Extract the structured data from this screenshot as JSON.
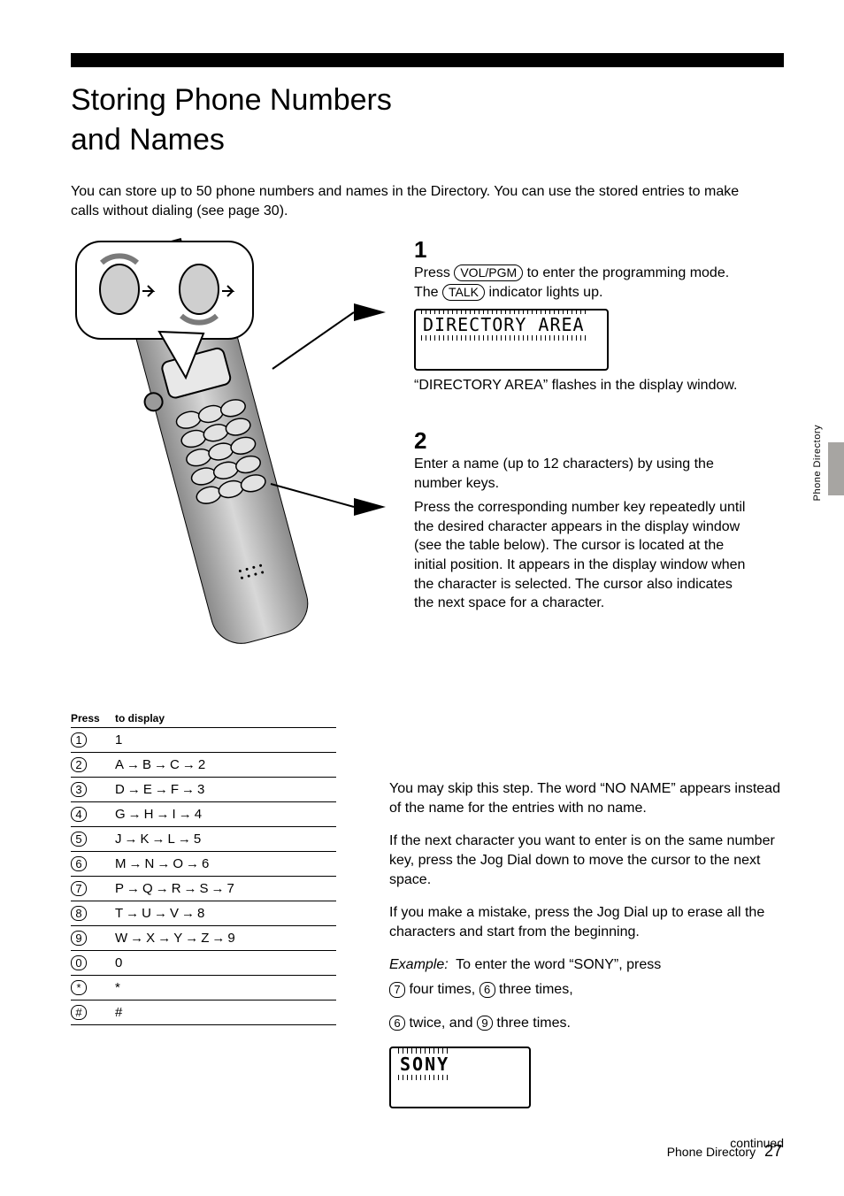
{
  "title_line1": "Storing Phone Numbers",
  "title_line2": "and Names",
  "intro": "You can store up to 50 phone numbers and names in the Directory. You can use the stored entries to make calls without dialing (see page 30).",
  "steps": {
    "s1": {
      "num": "1",
      "text_a": "Press ",
      "pill": "VOL/PGM",
      "text_b": " to enter the programming mode. The ",
      "pill2": "TALK",
      "text_c": " indicator lights up.",
      "sub": "“DIRECTORY AREA” flashes in the display window.",
      "lcd": "DIRECTORY AREA"
    },
    "s2": {
      "num": "2",
      "text": "Enter a name (up to 12 characters) by using the number keys.",
      "sub": "Press the corresponding number key repeatedly until the desired character appears in the display window (see the table below). The cursor is located at the initial position. It appears in the display window when the character is selected. The cursor also indicates the next space for a character."
    }
  },
  "char_table": {
    "head_press": "Press",
    "head_display": "to display",
    "rows": [
      {
        "key": "1",
        "seq": [
          "1"
        ]
      },
      {
        "key": "2",
        "seq": [
          "A",
          "B",
          "C",
          "2"
        ]
      },
      {
        "key": "3",
        "seq": [
          "D",
          "E",
          "F",
          "3"
        ]
      },
      {
        "key": "4",
        "seq": [
          "G",
          "H",
          "I",
          "4"
        ]
      },
      {
        "key": "5",
        "seq": [
          "J",
          "K",
          "L",
          "5"
        ]
      },
      {
        "key": "6",
        "seq": [
          "M",
          "N",
          "O",
          "6"
        ]
      },
      {
        "key": "7",
        "seq": [
          "P",
          "Q",
          "R",
          "S",
          "7"
        ]
      },
      {
        "key": "8",
        "seq": [
          "T",
          "U",
          "V",
          "8"
        ]
      },
      {
        "key": "9",
        "seq": [
          "W",
          "X",
          "Y",
          "Z",
          "9"
        ]
      },
      {
        "key": "0",
        "seq": [
          "0"
        ]
      },
      {
        "key": "*",
        "seq": [
          "*"
        ]
      },
      {
        "key": "#",
        "seq": [
          "#"
        ]
      }
    ]
  },
  "notes": {
    "spaces": "You may skip this step. The word “NO NAME” appears instead of the name for the entries with no name.",
    "same_key_a": "If the next character you want to enter is on the same number key, press the Jog Dial down to move the cursor to the next space.",
    "same_key_b": "If you make a mistake, press the Jog Dial up to erase all the characters and start from the beginning.",
    "example_label": "Example:",
    "example_text": "To enter the word “SONY”, press",
    "ex1_prefix": "",
    "ex1_key1": "7",
    "ex1_mid": " four times, ",
    "ex1_key2": "6",
    "ex1_suffix": " three times,",
    "ex2_key1": "6",
    "ex2_mid": " twice, and ",
    "ex2_key2": "9",
    "ex2_suffix": " three times.",
    "lcd2_text": "SONY",
    "continued": "continued"
  },
  "side_label": "Phone Directory",
  "footer": {
    "label": "Phone Directory",
    "page": "27"
  },
  "arrow_glyph": "→",
  "colors": {
    "tab": "#a7a5a2"
  }
}
